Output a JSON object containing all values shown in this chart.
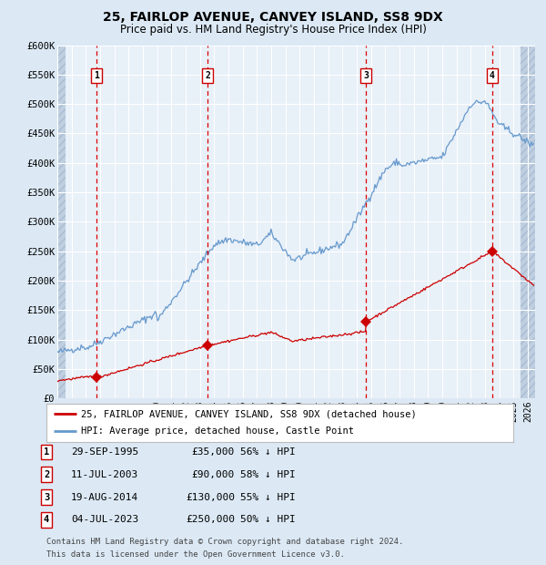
{
  "title1": "25, FAIRLOP AVENUE, CANVEY ISLAND, SS8 9DX",
  "title2": "Price paid vs. HM Land Registry's House Price Index (HPI)",
  "ylim": [
    0,
    600000
  ],
  "yticks": [
    0,
    50000,
    100000,
    150000,
    200000,
    250000,
    300000,
    350000,
    400000,
    450000,
    500000,
    550000,
    600000
  ],
  "ytick_labels": [
    "£0",
    "£50K",
    "£100K",
    "£150K",
    "£200K",
    "£250K",
    "£300K",
    "£350K",
    "£400K",
    "£450K",
    "£500K",
    "£550K",
    "£600K"
  ],
  "xlim_start": 1993.0,
  "xlim_end": 2026.5,
  "bg_color": "#dce9f5",
  "plot_bg": "#e8f0f8",
  "grid_color": "#ffffff",
  "red_line_color": "#cc0000",
  "blue_line_color": "#6699cc",
  "sale_marker_color": "#cc0000",
  "dashed_line_color": "#dd0000",
  "sale_points": [
    {
      "year": 1995.75,
      "price": 35000,
      "label": "1",
      "date": "29-SEP-1995",
      "price_str": "£35,000",
      "pct": "56% ↓ HPI"
    },
    {
      "year": 2003.53,
      "price": 90000,
      "label": "2",
      "date": "11-JUL-2003",
      "price_str": "£90,000",
      "pct": "58% ↓ HPI"
    },
    {
      "year": 2014.63,
      "price": 130000,
      "label": "3",
      "date": "19-AUG-2014",
      "price_str": "£130,000",
      "pct": "55% ↓ HPI"
    },
    {
      "year": 2023.5,
      "price": 250000,
      "label": "4",
      "date": "04-JUL-2023",
      "price_str": "£250,000",
      "pct": "50% ↓ HPI"
    }
  ],
  "legend1": "25, FAIRLOP AVENUE, CANVEY ISLAND, SS8 9DX (detached house)",
  "legend2": "HPI: Average price, detached house, Castle Point",
  "footer1": "Contains HM Land Registry data © Crown copyright and database right 2024.",
  "footer2": "This data is licensed under the Open Government Licence v3.0."
}
